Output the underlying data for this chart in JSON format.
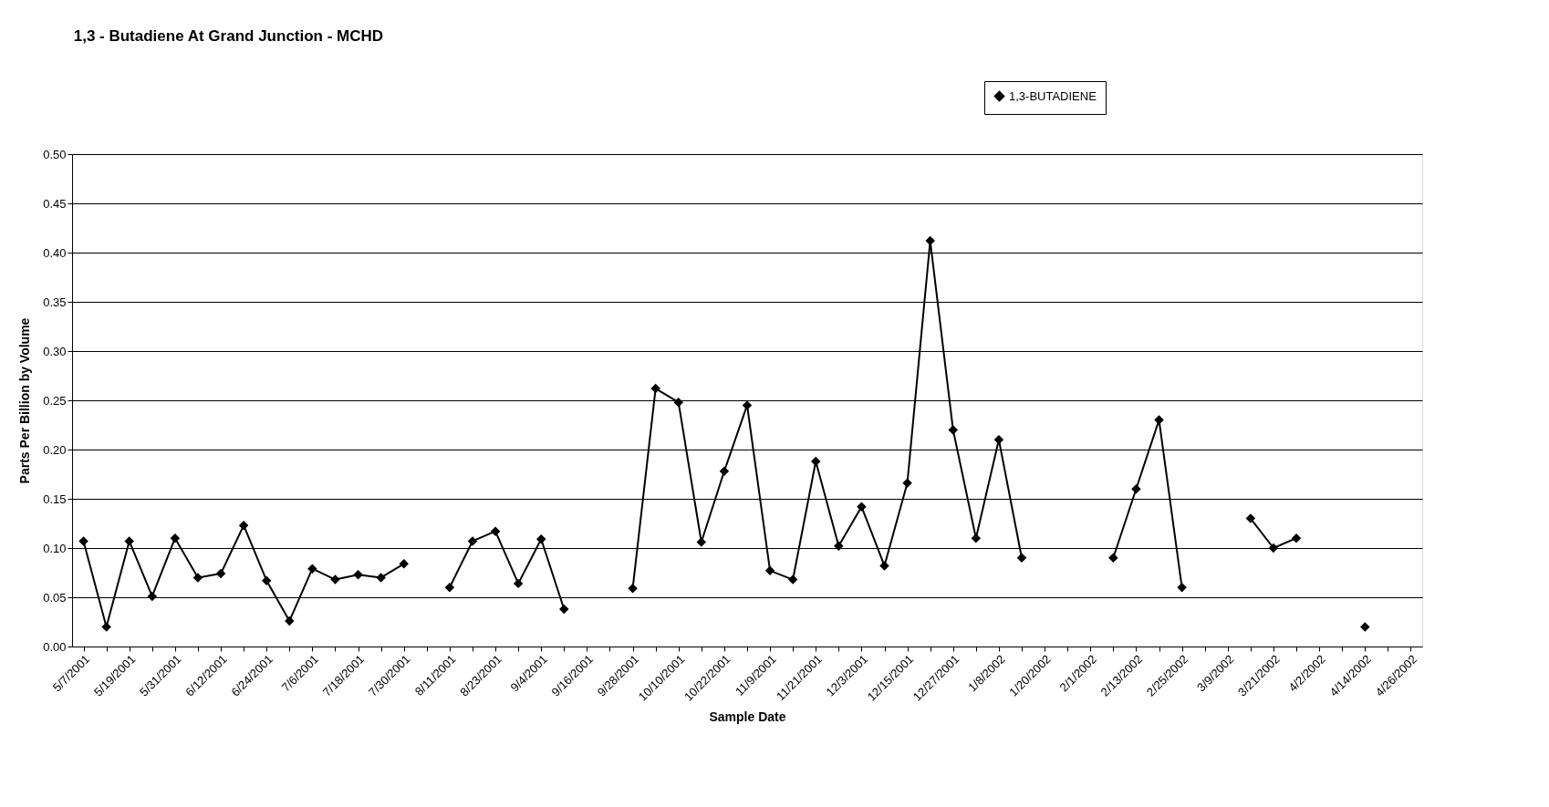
{
  "chart_data": {
    "type": "line",
    "title": "1,3 - Butadiene At Grand Junction - MCHD",
    "xlabel": "Sample Date",
    "ylabel": "Parts Per Billion by Volume",
    "categories": [
      "5/7/2001",
      null,
      "5/19/2001",
      null,
      "5/31/2001",
      null,
      "6/12/2001",
      null,
      "6/24/2001",
      null,
      "7/6/2001",
      null,
      "7/18/2001",
      null,
      "7/30/2001",
      null,
      "8/11/2001",
      null,
      "8/23/2001",
      null,
      "9/4/2001",
      null,
      "9/16/2001",
      null,
      "9/28/2001",
      null,
      "10/10/2001",
      null,
      "10/22/2001",
      null,
      "11/9/2001",
      null,
      "11/21/2001",
      null,
      "12/3/2001",
      null,
      "12/15/2001",
      null,
      "12/27/2001",
      null,
      "1/8/2002",
      null,
      "1/20/2002",
      null,
      "2/1/2002",
      null,
      "2/13/2002",
      null,
      "2/25/2002",
      null,
      "3/9/2002",
      null,
      "3/21/2002",
      null,
      "4/2/2002",
      null,
      "4/14/2002",
      null,
      "4/26/2002"
    ],
    "series": [
      {
        "name": "1,3-BUTADIENE",
        "color": "#000000",
        "values": [
          0.107,
          0.02,
          0.107,
          0.051,
          0.11,
          0.07,
          0.074,
          0.123,
          0.067,
          0.026,
          0.079,
          0.068,
          0.073,
          0.07,
          0.084,
          null,
          0.06,
          0.107,
          0.117,
          0.064,
          0.109,
          0.038,
          null,
          null,
          0.059,
          0.262,
          0.248,
          0.106,
          0.178,
          0.245,
          0.077,
          0.068,
          0.188,
          0.102,
          0.142,
          0.082,
          0.166,
          0.412,
          0.22,
          0.11,
          0.21,
          0.09,
          null,
          null,
          null,
          0.09,
          0.16,
          0.23,
          0.06,
          null,
          null,
          0.13,
          0.1,
          0.11,
          null,
          null,
          0.02,
          null,
          null
        ]
      }
    ],
    "ylim": [
      0,
      0.5
    ],
    "yticks": [
      {
        "value": 0,
        "label": "0.00"
      },
      {
        "value": 0.05,
        "label": "0.05"
      },
      {
        "value": 0.1,
        "label": "0.10"
      },
      {
        "value": 0.15,
        "label": "0.15"
      },
      {
        "value": 0.2,
        "label": "0.20"
      },
      {
        "value": 0.25,
        "label": "0.25"
      },
      {
        "value": 0.3,
        "label": "0.30"
      },
      {
        "value": 0.35,
        "label": "0.35"
      },
      {
        "value": 0.4,
        "label": "0.40"
      },
      {
        "value": 0.45,
        "label": "0.45"
      },
      {
        "value": 0.5,
        "label": "0.50"
      }
    ],
    "grid": "y",
    "legend": "top right",
    "marker": "diamond",
    "line_style": "solid"
  }
}
